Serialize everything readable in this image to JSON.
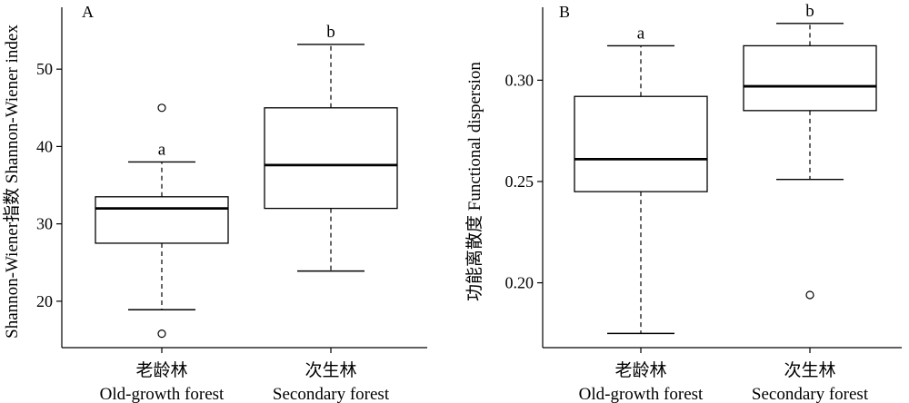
{
  "chart_data": [
    {
      "panel": "A",
      "type": "box",
      "ylabel": "Shannon-Wiener指数 Shannon-Wiener index",
      "ylim": [
        14,
        58
      ],
      "yticks": [
        20,
        30,
        40,
        50
      ],
      "categories": [
        {
          "cn": "老龄林",
          "en": "Old-growth forest"
        },
        {
          "cn": "次生林",
          "en": "Secondary forest"
        }
      ],
      "boxes": [
        {
          "whisker_low": 18.9,
          "q1": 27.5,
          "median": 32.0,
          "q3": 33.5,
          "whisker_high": 38.0,
          "outliers": [
            45.0,
            15.8
          ],
          "letter": "a"
        },
        {
          "whisker_low": 23.9,
          "q1": 32.0,
          "median": 37.6,
          "q3": 45.0,
          "whisker_high": 53.2,
          "outliers": [],
          "letter": "b"
        }
      ]
    },
    {
      "panel": "B",
      "type": "box",
      "ylabel": "功能离散度 Functional dispersion",
      "ylim": [
        0.168,
        0.336
      ],
      "yticks": [
        "0.20",
        "0.25",
        "0.30"
      ],
      "categories": [
        {
          "cn": "老龄林",
          "en": "Old-growth forest"
        },
        {
          "cn": "次生林",
          "en": "Secondary forest"
        }
      ],
      "boxes": [
        {
          "whisker_low": 0.175,
          "q1": 0.245,
          "median": 0.261,
          "q3": 0.292,
          "whisker_high": 0.317,
          "outliers": [],
          "letter": "a"
        },
        {
          "whisker_low": 0.251,
          "q1": 0.285,
          "median": 0.297,
          "q3": 0.317,
          "whisker_high": 0.328,
          "outliers": [
            0.194
          ],
          "letter": "b"
        }
      ]
    }
  ]
}
